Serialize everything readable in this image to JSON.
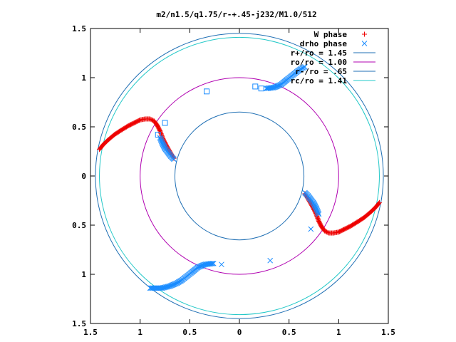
{
  "chart_data": {
    "type": "scatter",
    "title": "m2/n1.5/q1.75/r-+.45-j232/M1.0/512",
    "xlim": [
      -1.5,
      1.5
    ],
    "ylim": [
      -1.5,
      1.5
    ],
    "x_ticks": [
      -1.5,
      -1,
      -0.5,
      0,
      0.5,
      1,
      1.5
    ],
    "x_tick_labels": [
      "1.5",
      "1",
      "0.5",
      "0",
      "0.5",
      "1",
      "1.5"
    ],
    "y_ticks": [
      1.5,
      1,
      0.5,
      0,
      -0.5,
      -1,
      -1.5
    ],
    "y_tick_labels": [
      "1.5",
      "1",
      "0.5",
      "0",
      "0.5",
      "1",
      "1.5"
    ],
    "grid": false,
    "legend_position": "top-right",
    "circles": [
      {
        "name": "r+/ro = 1.45",
        "radius": 1.45,
        "color": "#1f6fb4"
      },
      {
        "name": "ro/ro = 1.00",
        "radius": 1.0,
        "color": "#b000b0"
      },
      {
        "name": "r-/ro = .65",
        "radius": 0.65,
        "color": "#1f6fb4"
      },
      {
        "name": "rc/ro = 1.41",
        "radius": 1.41,
        "color": "#22c8c8"
      }
    ],
    "series": [
      {
        "name": "W phase",
        "marker": "plus",
        "color": "#ee0000",
        "arms": [
          [
            [
              -1.41,
              0.27
            ],
            [
              -1.38,
              0.31
            ],
            [
              -1.33,
              0.36
            ],
            [
              -1.26,
              0.42
            ],
            [
              -1.2,
              0.46
            ],
            [
              -1.12,
              0.51
            ],
            [
              -1.06,
              0.54
            ],
            [
              -1.0,
              0.57
            ],
            [
              -0.95,
              0.58
            ],
            [
              -0.9,
              0.58
            ],
            [
              -0.86,
              0.56
            ],
            [
              -0.83,
              0.52
            ],
            [
              -0.8,
              0.46
            ],
            [
              -0.77,
              0.38
            ],
            [
              -0.73,
              0.3
            ],
            [
              -0.69,
              0.23
            ],
            [
              -0.66,
              0.18
            ]
          ],
          [
            [
              1.41,
              -0.27
            ],
            [
              1.38,
              -0.31
            ],
            [
              1.33,
              -0.36
            ],
            [
              1.26,
              -0.42
            ],
            [
              1.2,
              -0.46
            ],
            [
              1.12,
              -0.51
            ],
            [
              1.06,
              -0.54
            ],
            [
              1.0,
              -0.57
            ],
            [
              0.95,
              -0.58
            ],
            [
              0.9,
              -0.58
            ],
            [
              0.86,
              -0.56
            ],
            [
              0.83,
              -0.52
            ],
            [
              0.8,
              -0.46
            ],
            [
              0.77,
              -0.38
            ],
            [
              0.73,
              -0.3
            ],
            [
              0.69,
              -0.23
            ],
            [
              0.66,
              -0.18
            ]
          ]
        ],
        "isolated": []
      },
      {
        "name": "drho phase",
        "marker": "cross",
        "color": "#1a8cff",
        "arms": [
          [
            [
              -0.66,
              0.17
            ],
            [
              -0.69,
              0.2
            ],
            [
              -0.72,
              0.24
            ],
            [
              -0.75,
              0.28
            ],
            [
              -0.78,
              0.34
            ],
            [
              -0.8,
              0.39
            ]
          ],
          [
            [
              0.66,
              -0.17
            ],
            [
              0.69,
              -0.2
            ],
            [
              0.72,
              -0.24
            ],
            [
              0.75,
              -0.28
            ],
            [
              0.78,
              -0.34
            ],
            [
              0.8,
              -0.39
            ]
          ],
          [
            [
              0.27,
              0.89
            ],
            [
              0.35,
              0.9
            ],
            [
              0.42,
              0.93
            ],
            [
              0.48,
              0.98
            ],
            [
              0.53,
              1.02
            ],
            [
              0.58,
              1.06
            ],
            [
              0.62,
              1.09
            ],
            [
              0.66,
              1.11
            ]
          ],
          [
            [
              -0.27,
              -0.89
            ],
            [
              -0.35,
              -0.9
            ],
            [
              -0.42,
              -0.93
            ],
            [
              -0.48,
              -0.98
            ],
            [
              -0.53,
              -1.02
            ],
            [
              -0.58,
              -1.06
            ],
            [
              -0.63,
              -1.09
            ],
            [
              -0.7,
              -1.12
            ],
            [
              -0.78,
              -1.14
            ],
            [
              -0.9,
              -1.14
            ]
          ]
        ],
        "isolated": [
          [
            0.72,
            -0.54
          ],
          [
            0.31,
            -0.86
          ],
          [
            -0.18,
            -0.9
          ],
          [
            -0.26,
            -0.89
          ]
        ]
      },
      {
        "name": "",
        "marker": "square",
        "color": "#1a8cff",
        "arms": [],
        "isolated": [
          [
            -0.33,
            0.86
          ],
          [
            0.16,
            0.91
          ],
          [
            0.22,
            0.89
          ],
          [
            -0.75,
            0.54
          ],
          [
            -0.82,
            0.42
          ]
        ]
      }
    ]
  }
}
